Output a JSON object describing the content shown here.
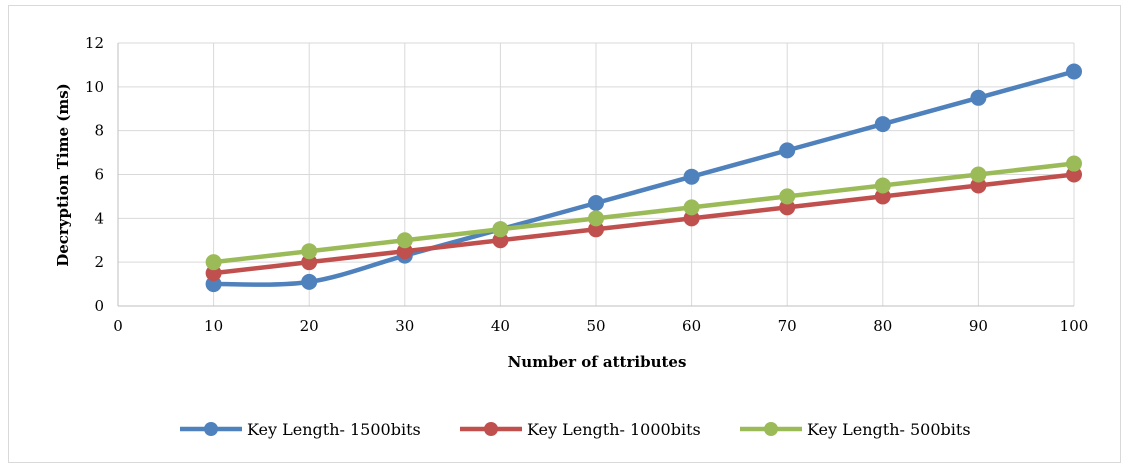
{
  "chart_data": {
    "type": "line",
    "title": "",
    "xlabel": "Number of attributes",
    "ylabel": "Decryption Time (ms)",
    "xlim": [
      0,
      100
    ],
    "ylim": [
      0,
      12
    ],
    "x_ticks": [
      0,
      10,
      20,
      30,
      40,
      50,
      60,
      70,
      80,
      90,
      100
    ],
    "y_ticks": [
      0,
      2,
      4,
      6,
      8,
      10,
      12
    ],
    "grid": "horizontal",
    "legend_position": "bottom",
    "series": [
      {
        "name": "Key Length- 1500bits",
        "color": "#4f81bd",
        "x": [
          10,
          20,
          30,
          40,
          50,
          60,
          70,
          80,
          90,
          100
        ],
        "values": [
          1.0,
          1.1,
          2.3,
          3.5,
          4.7,
          5.9,
          7.1,
          8.3,
          9.5,
          10.7
        ]
      },
      {
        "name": "Key Length- 1000bits",
        "color": "#c0504d",
        "x": [
          10,
          20,
          30,
          40,
          50,
          60,
          70,
          80,
          90,
          100
        ],
        "values": [
          1.5,
          2.0,
          2.5,
          3.0,
          3.5,
          4.0,
          4.5,
          5.0,
          5.5,
          6.0
        ]
      },
      {
        "name": "Key Length- 500bits",
        "color": "#9bbb59",
        "x": [
          10,
          20,
          30,
          40,
          50,
          60,
          70,
          80,
          90,
          100
        ],
        "values": [
          2.0,
          2.5,
          3.0,
          3.5,
          4.0,
          4.5,
          5.0,
          5.5,
          6.0,
          6.5
        ]
      }
    ]
  }
}
